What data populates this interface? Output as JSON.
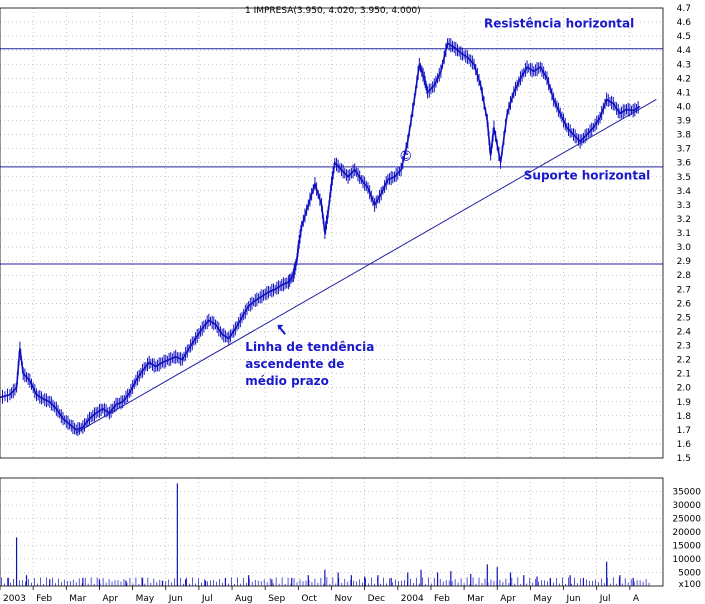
{
  "chart_data": {
    "type": "line",
    "title": "1 IMPRESA(3.950, 4.020, 3.950, 4.000)",
    "colors": {
      "price": "#1010c0",
      "volume": "#1010c0",
      "grid": "#a0a0a0",
      "annotation": "#1a1acc",
      "lines": "#2020a0"
    },
    "grid": true,
    "price_axis": {
      "ylim": [
        1.5,
        4.7
      ],
      "ticks": [
        "1.5",
        "1.6",
        "1.7",
        "1.8",
        "1.9",
        "2.0",
        "2.1",
        "2.2",
        "2.3",
        "2.4",
        "2.5",
        "2.6",
        "2.7",
        "2.8",
        "2.9",
        "3.0",
        "3.1",
        "3.2",
        "3.3",
        "3.4",
        "3.5",
        "3.6",
        "3.7",
        "3.8",
        "3.9",
        "4.0",
        "4.1",
        "4.2",
        "4.3",
        "4.4",
        "4.5",
        "4.6",
        "4.7"
      ]
    },
    "volume_axis": {
      "ylim": [
        0,
        40000
      ],
      "ticks": [
        "5000",
        "10000",
        "15000",
        "20000",
        "25000",
        "30000",
        "35000"
      ],
      "unit_label": "x100"
    },
    "x_axis": {
      "labels": [
        "2003",
        "Feb",
        "Mar",
        "Apr",
        "May",
        "Jun",
        "Jul",
        "Aug",
        "Sep",
        "Oct",
        "Nov",
        "Dec",
        "2004",
        "Feb",
        "Mar",
        "Apr",
        "May",
        "Jun",
        "Jul",
        "A"
      ],
      "label_months": [
        0,
        1,
        2,
        3,
        4,
        5,
        6,
        7,
        8,
        9,
        10,
        11,
        12,
        13,
        14,
        15,
        16,
        17,
        18,
        19
      ]
    },
    "price_series": {
      "name": "",
      "points": [
        [
          0,
          1.93
        ],
        [
          0.3,
          1.95
        ],
        [
          0.5,
          2.0
        ],
        [
          0.6,
          2.28
        ],
        [
          0.7,
          2.1
        ],
        [
          0.9,
          2.05
        ],
        [
          1.1,
          1.95
        ],
        [
          1.3,
          1.92
        ],
        [
          1.5,
          1.9
        ],
        [
          1.7,
          1.85
        ],
        [
          1.9,
          1.78
        ],
        [
          2.1,
          1.74
        ],
        [
          2.3,
          1.7
        ],
        [
          2.5,
          1.72
        ],
        [
          2.7,
          1.78
        ],
        [
          2.9,
          1.82
        ],
        [
          3.1,
          1.85
        ],
        [
          3.3,
          1.82
        ],
        [
          3.5,
          1.88
        ],
        [
          3.7,
          1.9
        ],
        [
          3.9,
          1.96
        ],
        [
          4.1,
          2.05
        ],
        [
          4.3,
          2.12
        ],
        [
          4.5,
          2.18
        ],
        [
          4.7,
          2.15
        ],
        [
          4.9,
          2.18
        ],
        [
          5.1,
          2.2
        ],
        [
          5.3,
          2.22
        ],
        [
          5.5,
          2.2
        ],
        [
          5.7,
          2.28
        ],
        [
          5.9,
          2.35
        ],
        [
          6.1,
          2.42
        ],
        [
          6.3,
          2.48
        ],
        [
          6.5,
          2.45
        ],
        [
          6.7,
          2.38
        ],
        [
          6.9,
          2.35
        ],
        [
          7.1,
          2.42
        ],
        [
          7.3,
          2.5
        ],
        [
          7.5,
          2.58
        ],
        [
          7.7,
          2.62
        ],
        [
          7.9,
          2.65
        ],
        [
          8.1,
          2.68
        ],
        [
          8.3,
          2.7
        ],
        [
          8.5,
          2.73
        ],
        [
          8.7,
          2.75
        ],
        [
          8.85,
          2.8
        ],
        [
          8.95,
          2.9
        ],
        [
          9.0,
          3.0
        ],
        [
          9.1,
          3.15
        ],
        [
          9.3,
          3.3
        ],
        [
          9.5,
          3.45
        ],
        [
          9.7,
          3.3
        ],
        [
          9.8,
          3.1
        ],
        [
          9.9,
          3.25
        ],
        [
          10.0,
          3.45
        ],
        [
          10.1,
          3.6
        ],
        [
          10.3,
          3.55
        ],
        [
          10.5,
          3.5
        ],
        [
          10.7,
          3.55
        ],
        [
          10.9,
          3.48
        ],
        [
          11.1,
          3.42
        ],
        [
          11.3,
          3.3
        ],
        [
          11.5,
          3.38
        ],
        [
          11.7,
          3.48
        ],
        [
          11.9,
          3.5
        ],
        [
          12.1,
          3.55
        ],
        [
          12.3,
          3.75
        ],
        [
          12.5,
          4.05
        ],
        [
          12.65,
          4.3
        ],
        [
          12.8,
          4.2
        ],
        [
          12.9,
          4.1
        ],
        [
          13.1,
          4.15
        ],
        [
          13.3,
          4.25
        ],
        [
          13.5,
          4.45
        ],
        [
          13.7,
          4.42
        ],
        [
          13.9,
          4.38
        ],
        [
          14.1,
          4.35
        ],
        [
          14.3,
          4.3
        ],
        [
          14.5,
          4.15
        ],
        [
          14.7,
          3.9
        ],
        [
          14.8,
          3.65
        ],
        [
          14.9,
          3.85
        ],
        [
          15.1,
          3.6
        ],
        [
          15.3,
          3.95
        ],
        [
          15.5,
          4.1
        ],
        [
          15.7,
          4.2
        ],
        [
          15.9,
          4.28
        ],
        [
          16.1,
          4.25
        ],
        [
          16.3,
          4.28
        ],
        [
          16.5,
          4.2
        ],
        [
          16.7,
          4.05
        ],
        [
          16.9,
          3.95
        ],
        [
          17.1,
          3.85
        ],
        [
          17.3,
          3.8
        ],
        [
          17.5,
          3.75
        ],
        [
          17.7,
          3.8
        ],
        [
          17.9,
          3.85
        ],
        [
          18.1,
          3.92
        ],
        [
          18.3,
          4.05
        ],
        [
          18.5,
          4.02
        ],
        [
          18.7,
          3.95
        ],
        [
          18.9,
          3.98
        ],
        [
          19.1,
          3.97
        ],
        [
          19.3,
          4.0
        ]
      ]
    },
    "volume_series": {
      "name": "",
      "bars": [
        [
          0.25,
          3000
        ],
        [
          0.5,
          18000
        ],
        [
          0.8,
          4000
        ],
        [
          1.5,
          2500
        ],
        [
          2.5,
          3000
        ],
        [
          3.0,
          2500
        ],
        [
          3.8,
          2000
        ],
        [
          4.3,
          3000
        ],
        [
          4.9,
          2000
        ],
        [
          5.35,
          38000
        ],
        [
          5.6,
          2500
        ],
        [
          6.2,
          2000
        ],
        [
          6.8,
          3000
        ],
        [
          7.5,
          4000
        ],
        [
          8.2,
          2500
        ],
        [
          8.8,
          3000
        ],
        [
          9.3,
          4000
        ],
        [
          9.8,
          6000
        ],
        [
          10.2,
          5000
        ],
        [
          10.6,
          4000
        ],
        [
          11.0,
          3500
        ],
        [
          11.4,
          4000
        ],
        [
          11.8,
          3000
        ],
        [
          12.3,
          5000
        ],
        [
          12.7,
          6000
        ],
        [
          13.2,
          5000
        ],
        [
          13.6,
          5500
        ],
        [
          14.2,
          4500
        ],
        [
          14.7,
          8000
        ],
        [
          15.0,
          7000
        ],
        [
          15.4,
          5000
        ],
        [
          15.8,
          4000
        ],
        [
          16.2,
          3500
        ],
        [
          16.6,
          3000
        ],
        [
          17.2,
          4000
        ],
        [
          17.6,
          3000
        ],
        [
          18.3,
          9000
        ],
        [
          18.7,
          4000
        ],
        [
          19.1,
          3000
        ]
      ]
    },
    "reference_lines": [
      {
        "kind": "horizontal",
        "y": 4.41,
        "label": "Resistência horizontal"
      },
      {
        "kind": "horizontal",
        "y": 3.57,
        "label": "Suporte horizontal"
      },
      {
        "kind": "horizontal",
        "y": 2.88,
        "label": ""
      },
      {
        "kind": "trend",
        "from": [
          2.3,
          1.68
        ],
        "to": [
          19.8,
          4.05
        ],
        "label": ""
      }
    ],
    "annotations": [
      {
        "text": "Resistência horizontal",
        "month": 14.6,
        "price": 4.56
      },
      {
        "text": "Suporte horizontal",
        "month": 15.8,
        "price": 3.48
      },
      {
        "text": "Linha de tendência",
        "month": 7.4,
        "price": 2.26
      },
      {
        "text": "ascendente de",
        "month": 7.4,
        "price": 2.14
      },
      {
        "text": "médio prazo",
        "month": 7.4,
        "price": 2.02
      },
      {
        "text": "☺",
        "month": 12.05,
        "price": 3.62
      }
    ]
  }
}
